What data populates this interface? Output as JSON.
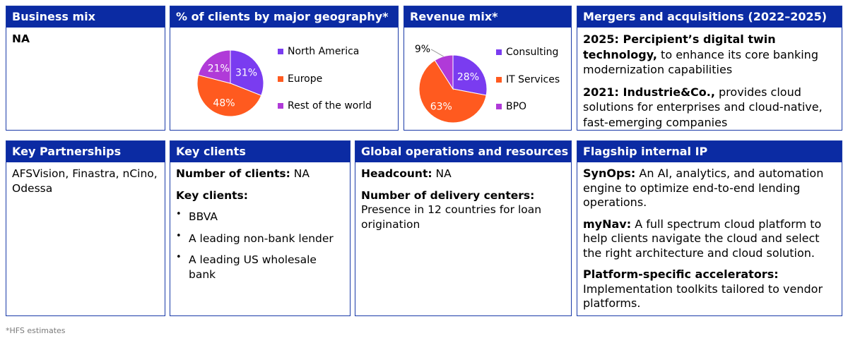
{
  "colors": {
    "header_bg": "#0b2ba3",
    "border": "#1a3aa8",
    "purple": "#7a3cf0",
    "orange": "#ff5a1f",
    "magenta": "#b03ad8"
  },
  "business_mix": {
    "title": "Business mix",
    "value": "NA"
  },
  "geography": {
    "title": "% of clients by major geography*",
    "chart_data": {
      "type": "pie",
      "title": "% of clients by major geography*",
      "slices": [
        {
          "label": "North America",
          "value": 31,
          "display": "31%",
          "color": "#7a3cf0"
        },
        {
          "label": "Europe",
          "value": 48,
          "display": "48%",
          "color": "#ff5a1f"
        },
        {
          "label": "Rest of the world",
          "value": 21,
          "display": "21%",
          "color": "#b03ad8"
        }
      ],
      "legend": "right"
    }
  },
  "revenue": {
    "title": "Revenue mix*",
    "chart_data": {
      "type": "pie",
      "title": "Revenue mix*",
      "slices": [
        {
          "label": "Consulting",
          "value": 28,
          "display": "28%",
          "color": "#7a3cf0"
        },
        {
          "label": "IT Services",
          "value": 63,
          "display": "63%",
          "color": "#ff5a1f"
        },
        {
          "label": "BPO",
          "value": 9,
          "display": "9%",
          "color": "#b03ad8"
        }
      ],
      "legend": "right"
    }
  },
  "mna": {
    "title": "Mergers and acquisitions (2022–2025)",
    "items": [
      {
        "bold": "2025: Percipient’s digital twin technology,",
        "text": " to enhance its core banking modernization capabilities"
      },
      {
        "bold": "2021: Industrie&Co.,",
        "text": " provides cloud solutions for enterprises and cloud-native, fast-emerging companies"
      }
    ]
  },
  "partnerships": {
    "title": "Key Partnerships",
    "text": "AFSVision, Finastra, nCino, Odessa"
  },
  "clients": {
    "title": "Key clients",
    "count_label": "Number of clients:",
    "count_value": " NA",
    "list_label": "Key clients:",
    "list": [
      "BBVA",
      "A leading non-bank lender",
      "A leading US wholesale bank"
    ]
  },
  "operations": {
    "title": "Global operations and resources",
    "headcount_label": "Headcount:",
    "headcount_value": " NA",
    "centers_label": "Number of delivery centers:",
    "centers_value": "Presence in 12 countries for loan origination"
  },
  "ip": {
    "title": "Flagship internal IP",
    "items": [
      {
        "bold": "SynOps:",
        "text": " An AI, analytics, and automation engine to optimize end-to-end lending operations."
      },
      {
        "bold": "myNav:",
        "text": " A full spectrum cloud platform to help clients navigate the cloud and select the right architecture and cloud solution."
      },
      {
        "bold": "Platform-specific accelerators:",
        "text": " Implementation toolkits tailored to vendor platforms."
      }
    ]
  },
  "footnote": "*HFS estimates"
}
